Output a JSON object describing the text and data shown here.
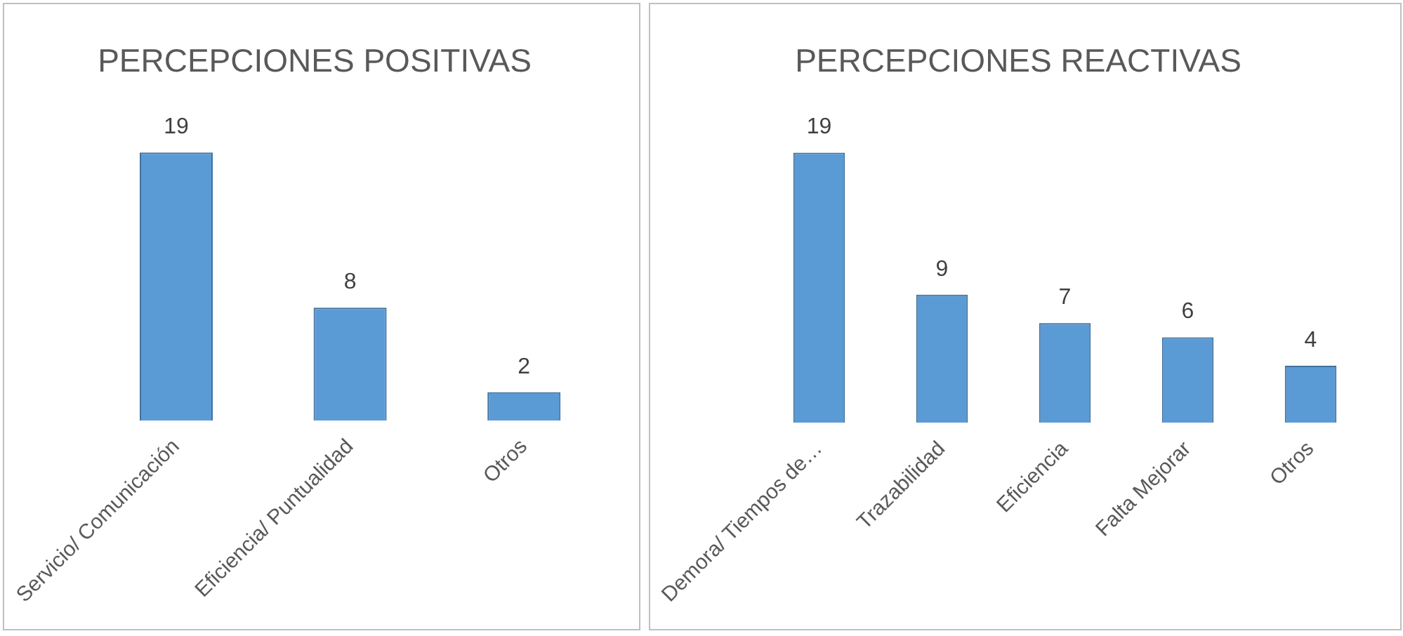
{
  "chart_data": [
    {
      "type": "bar",
      "title": "PERCEPCIONES POSITIVAS",
      "categories": [
        "Servicio/ Comunicación",
        "Eficiencia/ Puntualidad",
        "Otros"
      ],
      "values": [
        19,
        8,
        2
      ],
      "color": "#5b9bd5",
      "data_labels": true,
      "grid": false,
      "legend": false
    },
    {
      "type": "bar",
      "title": "PERCEPCIONES REACTIVAS",
      "categories": [
        "Demora/ Tiempos de…",
        "Trazabilidad",
        "Eficiencia",
        "Falta Mejorar",
        "Otros"
      ],
      "values": [
        19,
        9,
        7,
        6,
        4
      ],
      "color": "#5b9bd5",
      "data_labels": true,
      "grid": false,
      "legend": false
    }
  ]
}
